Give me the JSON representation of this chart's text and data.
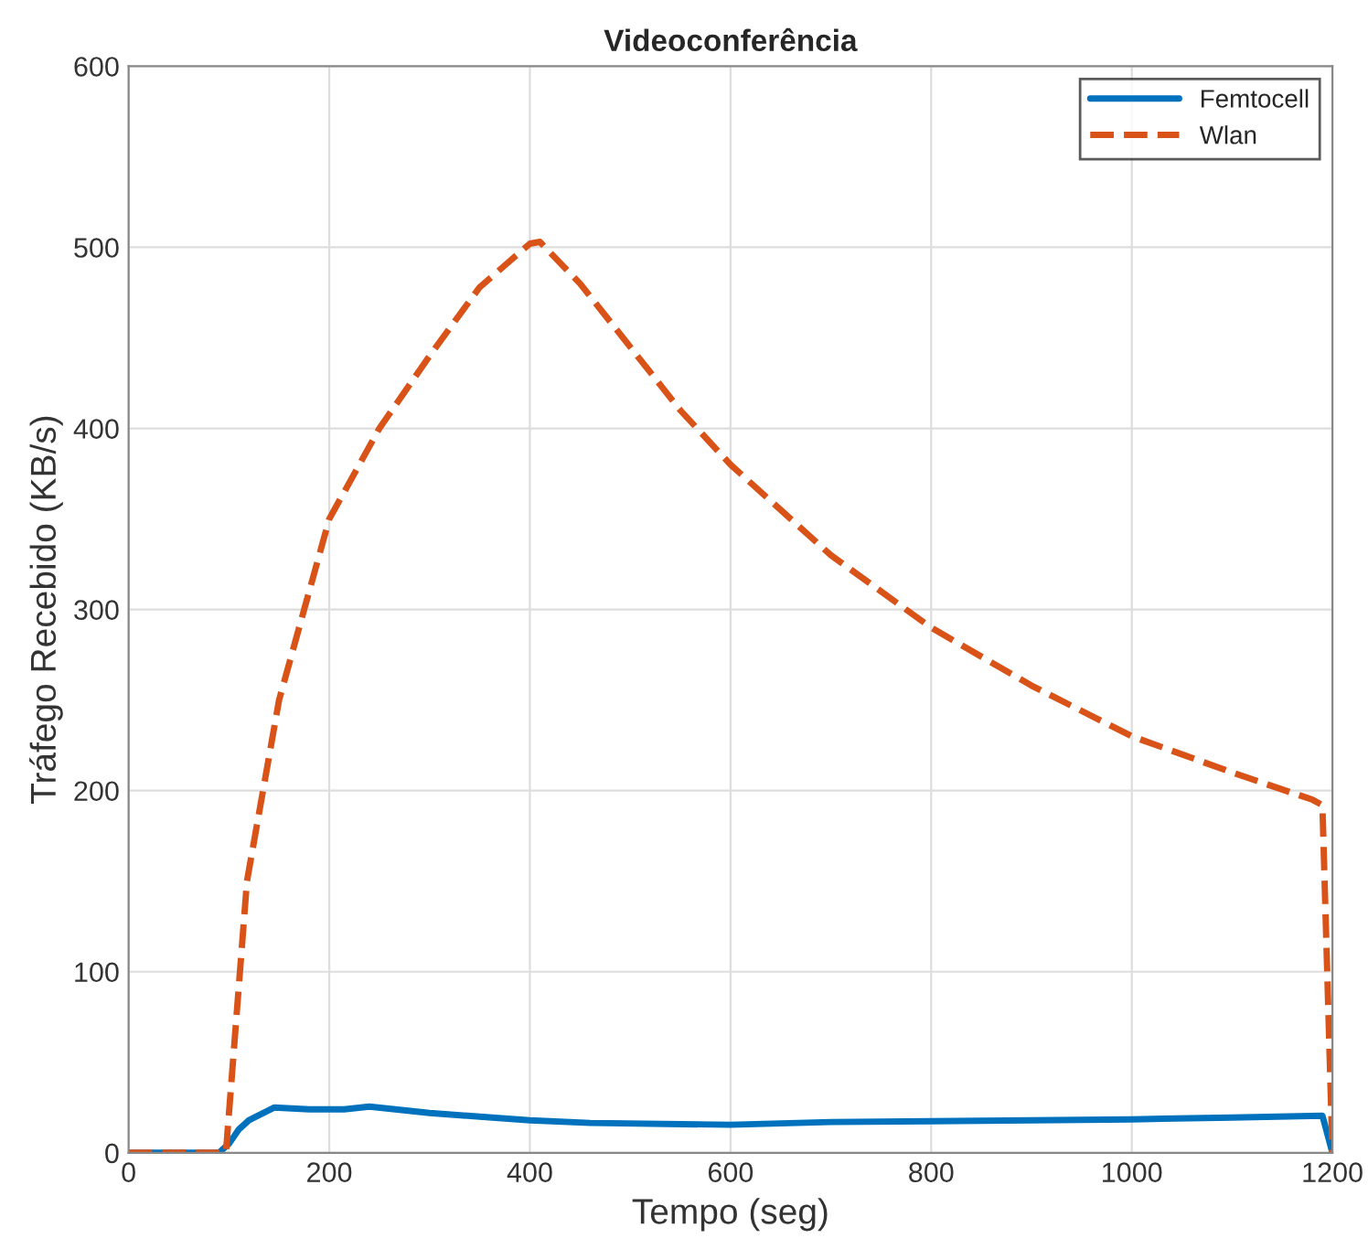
{
  "chart_data": {
    "type": "line",
    "title": "Videoconferência",
    "xlabel": "Tempo (seg)",
    "ylabel": "Tráfego Recebido (KB/s)",
    "xlim": [
      0,
      1200
    ],
    "xticks": [
      0,
      200,
      400,
      600,
      800,
      1000,
      1200
    ],
    "ylim": [
      0,
      600
    ],
    "yticks": [
      0,
      100,
      200,
      300,
      400,
      500,
      600
    ],
    "grid": true,
    "legend": "top right",
    "series": [
      {
        "name": "Femtocell",
        "color": "#0072bd",
        "line_style": "solid",
        "x": [
          0,
          90,
          100,
          110,
          120,
          145,
          180,
          215,
          240,
          300,
          350,
          400,
          460,
          600,
          700,
          800,
          900,
          1000,
          1100,
          1190,
          1200
        ],
        "values": [
          0,
          0,
          5,
          13,
          18,
          25,
          24,
          24,
          25.5,
          22,
          20,
          18,
          16.5,
          15.5,
          17,
          17.5,
          18,
          18.5,
          19.5,
          20.5,
          0
        ]
      },
      {
        "name": "Wlan",
        "color": "#d95319",
        "line_style": "dashed",
        "x": [
          0,
          90,
          97,
          118,
          150,
          200,
          250,
          300,
          350,
          400,
          410,
          450,
          500,
          550,
          600,
          700,
          800,
          900,
          1000,
          1100,
          1180,
          1190,
          1200
        ],
        "values": [
          0,
          0,
          0,
          150,
          250,
          350,
          400,
          440,
          478,
          502,
          503,
          480,
          445,
          410,
          380,
          330,
          290,
          258,
          230,
          210,
          195,
          192,
          0
        ]
      }
    ]
  }
}
